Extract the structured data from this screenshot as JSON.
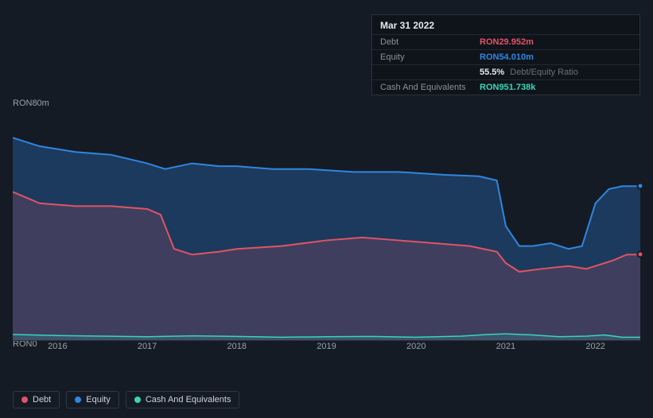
{
  "colors": {
    "debt": "#e15365",
    "equity": "#2f86e0",
    "cash": "#37d6b8",
    "debt_fill": "rgba(225,83,101,0.18)",
    "equity_fill": "rgba(47,134,224,0.30)",
    "cash_fill": "rgba(55,214,184,0.15)",
    "bg": "#151b24"
  },
  "tooltip": {
    "title": "Mar 31 2022",
    "rows": [
      {
        "label": "Debt",
        "value": "RON29.952m",
        "colorKey": "debt"
      },
      {
        "label": "Equity",
        "value": "RON54.010m",
        "colorKey": "equity"
      },
      {
        "label": "",
        "value": "55.5%",
        "extra": " Debt/Equity Ratio",
        "colorKey": "white"
      },
      {
        "label": "Cash And Equivalents",
        "value": "RON951.738k",
        "colorKey": "cash"
      }
    ]
  },
  "chart": {
    "yMax": 80,
    "yMin": 0,
    "yTopLabel": "RON80m",
    "yBottomLabel": "RON0",
    "xLabels": [
      "2016",
      "2017",
      "2018",
      "2019",
      "2020",
      "2021",
      "2022"
    ],
    "xDomain": [
      2015.5,
      2022.5
    ],
    "series": {
      "equity": {
        "points": [
          [
            2015.5,
            71
          ],
          [
            2015.8,
            68
          ],
          [
            2016.2,
            66
          ],
          [
            2016.6,
            65
          ],
          [
            2017.0,
            62
          ],
          [
            2017.2,
            60
          ],
          [
            2017.5,
            62
          ],
          [
            2017.8,
            61
          ],
          [
            2018.0,
            61
          ],
          [
            2018.4,
            60
          ],
          [
            2018.8,
            60
          ],
          [
            2019.3,
            59
          ],
          [
            2019.8,
            59
          ],
          [
            2020.3,
            58
          ],
          [
            2020.7,
            57.5
          ],
          [
            2020.9,
            56
          ],
          [
            2021.0,
            40
          ],
          [
            2021.15,
            33
          ],
          [
            2021.3,
            33
          ],
          [
            2021.5,
            34
          ],
          [
            2021.7,
            32
          ],
          [
            2021.85,
            33
          ],
          [
            2022.0,
            48
          ],
          [
            2022.15,
            53
          ],
          [
            2022.3,
            54
          ],
          [
            2022.5,
            54
          ]
        ]
      },
      "debt": {
        "points": [
          [
            2015.5,
            52
          ],
          [
            2015.8,
            48
          ],
          [
            2016.2,
            47
          ],
          [
            2016.6,
            47
          ],
          [
            2017.0,
            46
          ],
          [
            2017.15,
            44
          ],
          [
            2017.3,
            32
          ],
          [
            2017.5,
            30
          ],
          [
            2017.8,
            31
          ],
          [
            2018.0,
            32
          ],
          [
            2018.5,
            33
          ],
          [
            2019.0,
            35
          ],
          [
            2019.4,
            36
          ],
          [
            2019.8,
            35
          ],
          [
            2020.2,
            34
          ],
          [
            2020.6,
            33
          ],
          [
            2020.9,
            31
          ],
          [
            2021.0,
            27
          ],
          [
            2021.15,
            24
          ],
          [
            2021.4,
            25
          ],
          [
            2021.7,
            26
          ],
          [
            2021.9,
            25
          ],
          [
            2022.0,
            26
          ],
          [
            2022.2,
            28
          ],
          [
            2022.35,
            30
          ],
          [
            2022.5,
            30
          ]
        ]
      },
      "cash": {
        "points": [
          [
            2015.5,
            2.0
          ],
          [
            2016.0,
            1.6
          ],
          [
            2016.5,
            1.4
          ],
          [
            2017.0,
            1.2
          ],
          [
            2017.5,
            1.5
          ],
          [
            2018.0,
            1.3
          ],
          [
            2018.5,
            1.0
          ],
          [
            2019.0,
            1.2
          ],
          [
            2019.5,
            1.3
          ],
          [
            2020.0,
            1.0
          ],
          [
            2020.5,
            1.4
          ],
          [
            2020.8,
            2.0
          ],
          [
            2021.0,
            2.2
          ],
          [
            2021.3,
            1.8
          ],
          [
            2021.6,
            1.2
          ],
          [
            2021.9,
            1.4
          ],
          [
            2022.1,
            1.8
          ],
          [
            2022.3,
            1.0
          ],
          [
            2022.5,
            1.0
          ]
        ]
      }
    },
    "endMarkers": {
      "equity": [
        2022.5,
        54
      ],
      "debt": [
        2022.5,
        30
      ]
    }
  },
  "legend": [
    {
      "label": "Debt",
      "colorKey": "debt"
    },
    {
      "label": "Equity",
      "colorKey": "equity"
    },
    {
      "label": "Cash And Equivalents",
      "colorKey": "cash"
    }
  ]
}
